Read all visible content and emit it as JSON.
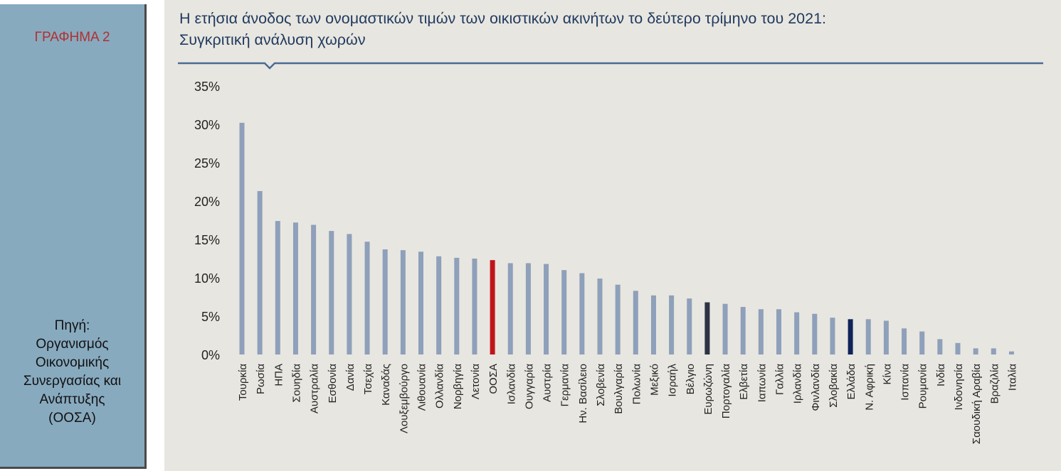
{
  "side": {
    "label": "ΓΡΑΦΗΜΑ 2",
    "source_lines": [
      "Πηγή:",
      "Οργανισμός",
      "Οικονομικής",
      "Συνεργασίας και",
      "Ανάπτυξης",
      "(ΟΟΣΑ)"
    ]
  },
  "title_lines": [
    "Η ετήσια άνοδος των ονομαστικών τιμών των οικιστικών ακινήτων το δεύτερο τρίμηνο του 2021:",
    "Συγκριτική ανάλυση χωρών"
  ],
  "colors": {
    "default_bar": "#8ea0ba",
    "oecd_bar": "#c0141c",
    "euro_bar": "#2b3344",
    "greece_bar": "#0f2459",
    "title_rule": "#4a6c94"
  },
  "chart_data": {
    "type": "bar",
    "ylim": [
      0,
      35
    ],
    "yticks": [
      "0%",
      "5%",
      "10%",
      "15%",
      "20%",
      "25%",
      "30%",
      "35%"
    ],
    "grid": false,
    "highlights": {
      "ΟΟΣΑ": "oecd_bar",
      "Ευρωζώνη": "euro_bar",
      "Ελλάδα": "greece_bar"
    },
    "categories": [
      "Τουρκία",
      "Ρωσία",
      "ΗΠΑ",
      "Σουηδία",
      "Αυστραλία",
      "Εσθονία",
      "Δανία",
      "Τσεχία",
      "Καναδάς",
      "Λουξεμβούργο",
      "Λιθουανία",
      "Ολλανδία",
      "Νορβηγία",
      "Λετονία",
      "ΟΟΣΑ",
      "Ισλανδία",
      "Ουγγαρία",
      "Αυστρία",
      "Γερμανία",
      "Ην. Βασίλειο",
      "Σλοβενία",
      "Βουλγαρία",
      "Πολωνία",
      "Μεξικό",
      "Ισραήλ",
      "Βέλγιο",
      "Ευρωζώνη",
      "Πορτογαλία",
      "Ελβετία",
      "Ιαπωνία",
      "Γαλλία",
      "Ιρλανδία",
      "Φινλανδία",
      "Σλοβακία",
      "Ελλάδα",
      "Ν. Αφρική",
      "Κίνα",
      "Ισπανία",
      "Ρουμανία",
      "Ινδία",
      "Ινδονησία",
      "Σαουδική Αραβία",
      "Βραζιλία",
      "Ιταλία"
    ],
    "values": [
      30.2,
      21.3,
      17.4,
      17.2,
      16.9,
      16.1,
      15.7,
      14.7,
      13.7,
      13.6,
      13.4,
      12.8,
      12.6,
      12.5,
      12.3,
      11.9,
      11.9,
      11.8,
      11.0,
      10.6,
      9.9,
      9.1,
      8.3,
      7.7,
      7.7,
      7.3,
      6.8,
      6.6,
      6.2,
      5.9,
      5.9,
      5.5,
      5.3,
      4.8,
      4.6,
      4.6,
      4.4,
      3.4,
      3.0,
      2.0,
      1.5,
      0.8,
      0.8,
      0.4
    ]
  }
}
